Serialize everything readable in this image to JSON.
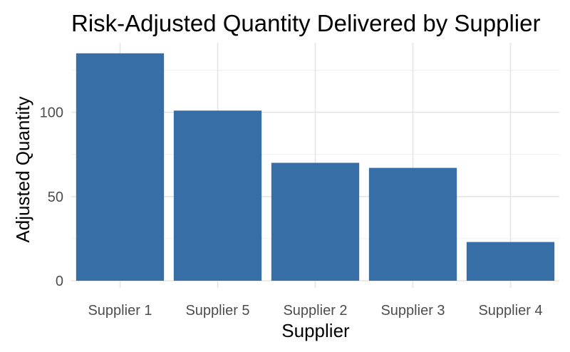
{
  "chart_data": {
    "type": "bar",
    "title": "Risk-Adjusted Quantity Delivered by Supplier",
    "xlabel": "Supplier",
    "ylabel": "Adjusted Quantity",
    "categories": [
      "Supplier 1",
      "Supplier 5",
      "Supplier 2",
      "Supplier 3",
      "Supplier 4"
    ],
    "values": [
      135,
      101,
      70,
      67,
      23
    ],
    "ylim": [
      0,
      135
    ],
    "yticks": [
      0,
      50,
      100
    ],
    "ytick_labels": [
      "0",
      "50",
      "100"
    ],
    "minor_yticks": [
      25,
      75,
      125
    ],
    "bar_color": "#386ea6",
    "grid": true,
    "legend": "none"
  }
}
